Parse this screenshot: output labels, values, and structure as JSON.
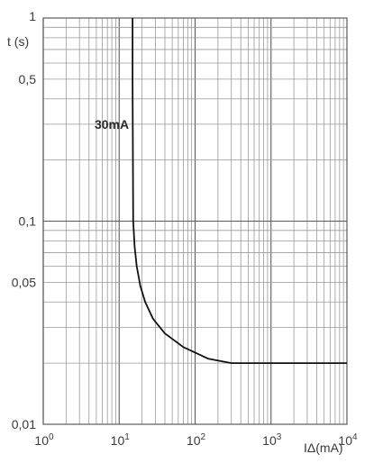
{
  "chart_data": {
    "type": "line",
    "x_scale": "log",
    "y_scale": "log",
    "xlim": [
      1,
      10000
    ],
    "ylim": [
      0.01,
      1
    ],
    "grid": true,
    "ylabel": "t (s)",
    "xlabel": "IΔ(mA)",
    "x_ticks": [
      {
        "value": 1,
        "base": "10",
        "exp": "0"
      },
      {
        "value": 10,
        "base": "10",
        "exp": "1"
      },
      {
        "value": 100,
        "base": "10",
        "exp": "2"
      },
      {
        "value": 1000,
        "base": "10",
        "exp": "3"
      },
      {
        "value": 10000,
        "base": "10",
        "exp": "4"
      }
    ],
    "y_ticks": [
      {
        "value": 1,
        "label": "1"
      },
      {
        "value": 0.5,
        "label": "0,5"
      },
      {
        "value": 0.1,
        "label": "0,1"
      },
      {
        "value": 0.05,
        "label": "0,05"
      },
      {
        "value": 0.01,
        "label": "0,01"
      }
    ],
    "series": [
      {
        "name": "30mA",
        "x": [
          15,
          15,
          15.3,
          16,
          17,
          19,
          22,
          28,
          40,
          70,
          150,
          300,
          500,
          1000,
          3000,
          10000
        ],
        "y": [
          1,
          0.5,
          0.1,
          0.075,
          0.06,
          0.048,
          0.04,
          0.033,
          0.028,
          0.024,
          0.021,
          0.02,
          0.02,
          0.02,
          0.02,
          0.02
        ]
      }
    ]
  }
}
